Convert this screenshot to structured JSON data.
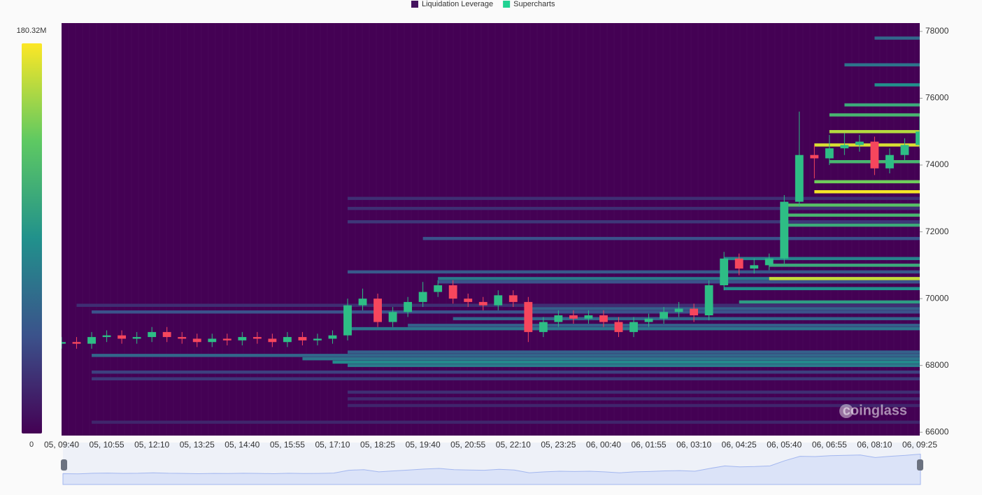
{
  "chart_data": {
    "type": "liquidation-heatmap",
    "legend": [
      {
        "name": "Liquidation Leverage",
        "color": "#45135f"
      },
      {
        "name": "Supercharts",
        "color": "#20d292"
      }
    ],
    "colorbar": {
      "lim": [
        0,
        180.32
      ],
      "ticks": [
        0,
        {
          "value": 180.32,
          "label": "180.32M"
        }
      ]
    },
    "colorscale": [
      "#440154",
      "#3b528b",
      "#21918c",
      "#5ec962",
      "#fde725"
    ],
    "x_labels": [
      "05, 09:40",
      "05, 10:55",
      "05, 12:10",
      "05, 13:25",
      "05, 14:40",
      "05, 15:55",
      "05, 17:10",
      "05, 18:25",
      "05, 19:40",
      "05, 20:55",
      "05, 22:10",
      "05, 23:25",
      "06, 00:40",
      "06, 01:55",
      "06, 03:10",
      "06, 04:25",
      "06, 05:40",
      "06, 06:55",
      "06, 08:10",
      "06, 09:25"
    ],
    "ylim": [
      65900,
      78250
    ],
    "yticks": [
      66000,
      68000,
      70000,
      72000,
      74000,
      76000,
      78000
    ],
    "up_color": "#2ebd85",
    "down_color": "#f6465d",
    "series": [
      {
        "name": "Supercharts",
        "values": [
          [
            68650,
            68850,
            68500,
            68700
          ],
          [
            68700,
            68850,
            68500,
            68650
          ],
          [
            68650,
            69000,
            68500,
            68850
          ],
          [
            68850,
            69050,
            68700,
            68900
          ],
          [
            68900,
            69050,
            68650,
            68800
          ],
          [
            68800,
            69000,
            68650,
            68850
          ],
          [
            68850,
            69150,
            68700,
            69000
          ],
          [
            69000,
            69150,
            68700,
            68850
          ],
          [
            68850,
            69000,
            68650,
            68800
          ],
          [
            68800,
            68950,
            68550,
            68700
          ],
          [
            68700,
            68950,
            68550,
            68800
          ],
          [
            68800,
            68950,
            68600,
            68750
          ],
          [
            68750,
            69000,
            68600,
            68850
          ],
          [
            68850,
            69000,
            68650,
            68800
          ],
          [
            68800,
            68950,
            68550,
            68700
          ],
          [
            68700,
            69000,
            68550,
            68850
          ],
          [
            68850,
            69000,
            68600,
            68750
          ],
          [
            68750,
            68950,
            68600,
            68800
          ],
          [
            68800,
            69050,
            68650,
            68900
          ],
          [
            68900,
            70000,
            68750,
            69800
          ],
          [
            69800,
            70300,
            69650,
            70000
          ],
          [
            70000,
            70150,
            69150,
            69300
          ],
          [
            69300,
            69750,
            69150,
            69600
          ],
          [
            69600,
            70050,
            69450,
            69900
          ],
          [
            69900,
            70500,
            69750,
            70200
          ],
          [
            70200,
            70550,
            70050,
            70400
          ],
          [
            70400,
            70550,
            69850,
            70000
          ],
          [
            70000,
            70150,
            69750,
            69900
          ],
          [
            69900,
            70050,
            69650,
            69800
          ],
          [
            69800,
            70250,
            69650,
            70100
          ],
          [
            70100,
            70250,
            69750,
            69900
          ],
          [
            69900,
            70050,
            68700,
            69000
          ],
          [
            69000,
            69450,
            68850,
            69300
          ],
          [
            69300,
            69650,
            69150,
            69500
          ],
          [
            69500,
            69650,
            69250,
            69400
          ],
          [
            69400,
            69650,
            69250,
            69500
          ],
          [
            69500,
            69650,
            69150,
            69300
          ],
          [
            69300,
            69450,
            68850,
            69000
          ],
          [
            69000,
            69450,
            68850,
            69300
          ],
          [
            69300,
            69550,
            69150,
            69400
          ],
          [
            69400,
            69750,
            69250,
            69600
          ],
          [
            69600,
            69900,
            69450,
            69700
          ],
          [
            69700,
            69850,
            69300,
            69500
          ],
          [
            69500,
            70550,
            69350,
            70400
          ],
          [
            70400,
            71400,
            70250,
            71200
          ],
          [
            71200,
            71350,
            70700,
            70900
          ],
          [
            70900,
            71200,
            70750,
            71000
          ],
          [
            71000,
            71350,
            70850,
            71200
          ],
          [
            71200,
            73100,
            71050,
            72900
          ],
          [
            72900,
            75600,
            72750,
            74300
          ],
          [
            74300,
            74600,
            73600,
            74200
          ],
          [
            74200,
            74900,
            74000,
            74500
          ],
          [
            74500,
            74950,
            74300,
            74600
          ],
          [
            74600,
            74900,
            74400,
            74700
          ],
          [
            74700,
            74850,
            73700,
            73900
          ],
          [
            73900,
            74500,
            73750,
            74300
          ],
          [
            74300,
            74800,
            74150,
            74600
          ],
          [
            74600,
            75500,
            74500,
            75000
          ]
        ]
      }
    ],
    "heatmap": [
      [
        68300,
        2,
        60
      ],
      [
        68200,
        16,
        70
      ],
      [
        68100,
        18,
        85
      ],
      [
        68000,
        19,
        75
      ],
      [
        68400,
        19,
        55
      ],
      [
        67800,
        2,
        35
      ],
      [
        67600,
        2,
        30
      ],
      [
        67200,
        19,
        25
      ],
      [
        66800,
        19,
        20
      ],
      [
        66300,
        2,
        20
      ],
      [
        67000,
        19,
        22
      ],
      [
        69600,
        2,
        45
      ],
      [
        69800,
        1,
        25
      ],
      [
        69100,
        19,
        70
      ],
      [
        69200,
        23,
        55
      ],
      [
        69400,
        26,
        60
      ],
      [
        69700,
        31,
        55
      ],
      [
        70600,
        25,
        75
      ],
      [
        70800,
        19,
        50
      ],
      [
        70500,
        25,
        45
      ],
      [
        71800,
        24,
        45
      ],
      [
        72300,
        19,
        30
      ],
      [
        72700,
        19,
        25
      ],
      [
        73000,
        19,
        25
      ],
      [
        71200,
        44,
        80
      ],
      [
        71000,
        47,
        110
      ],
      [
        70600,
        47,
        165
      ],
      [
        70300,
        44,
        90
      ],
      [
        69900,
        45,
        100
      ],
      [
        72200,
        48,
        110
      ],
      [
        72500,
        48,
        120
      ],
      [
        72800,
        48,
        130
      ],
      [
        73200,
        50,
        178
      ],
      [
        73500,
        50,
        140
      ],
      [
        74100,
        51,
        120
      ],
      [
        74600,
        50,
        170
      ],
      [
        75000,
        51,
        160
      ],
      [
        75500,
        51,
        120
      ],
      [
        75800,
        52,
        110
      ],
      [
        76400,
        54,
        90
      ],
      [
        77000,
        52,
        70
      ],
      [
        77800,
        54,
        60
      ]
    ],
    "watermark": "coinglass"
  }
}
